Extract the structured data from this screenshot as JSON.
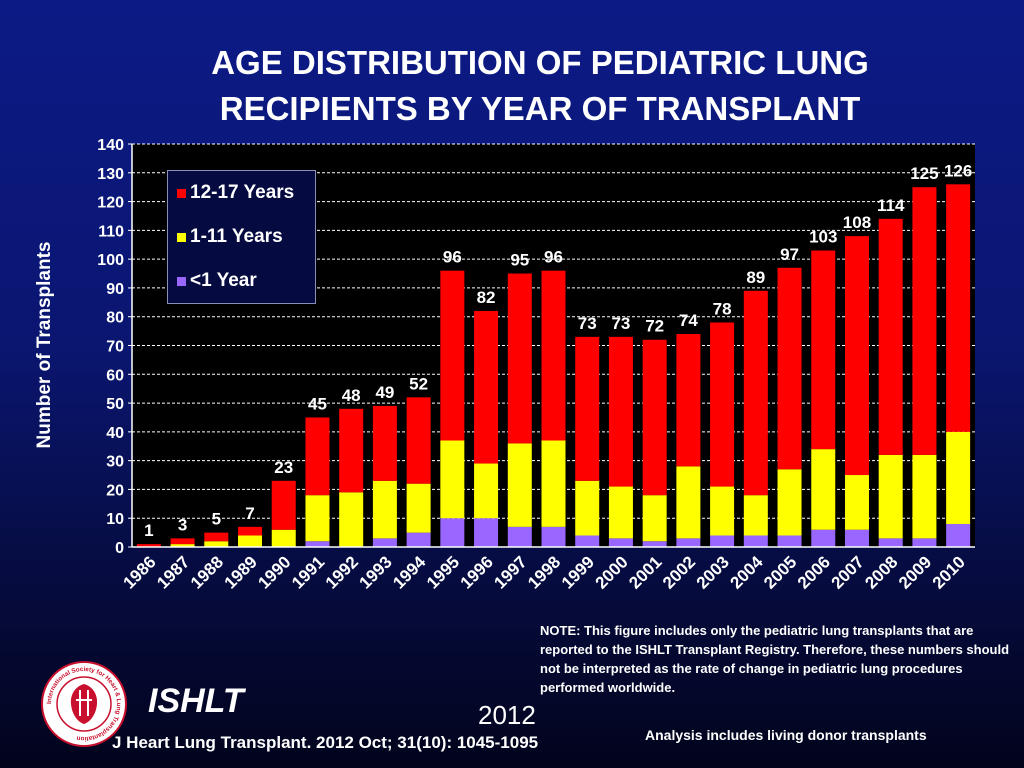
{
  "slide": {
    "title_line1": "AGE DISTRIBUTION OF PEDIATRIC LUNG",
    "title_line2": "RECIPIENTS BY YEAR OF TRANSPLANT",
    "note": "NOTE: This figure includes only the pediatric lung transplants that are reported to the ISHLT Transplant Registry. Therefore, these numbers should not be interpreted as the rate of change in pediatric lung procedures performed worldwide.",
    "brand": "ISHLT",
    "year": "2012",
    "citation": "J Heart Lung Transplant.  2012 Oct; 31(10): 1045-1095",
    "analysis_note": "Analysis includes living donor transplants",
    "logo_text": "International Society for Heart & Lung Transplantation"
  },
  "chart_data": {
    "type": "bar",
    "stacked": true,
    "title": "AGE DISTRIBUTION OF PEDIATRIC LUNG RECIPIENTS BY YEAR OF TRANSPLANT",
    "xlabel": "",
    "ylabel": "Number of Transplants",
    "ylim": [
      0,
      140
    ],
    "yticks": [
      0,
      10,
      20,
      30,
      40,
      50,
      60,
      70,
      80,
      90,
      100,
      110,
      120,
      130,
      140
    ],
    "grid": true,
    "legend_position": "top-left",
    "categories": [
      "1986",
      "1987",
      "1988",
      "1989",
      "1990",
      "1991",
      "1992",
      "1993",
      "1994",
      "1995",
      "1996",
      "1997",
      "1998",
      "1999",
      "2000",
      "2001",
      "2002",
      "2003",
      "2004",
      "2005",
      "2006",
      "2007",
      "2008",
      "2009",
      "2010"
    ],
    "series": [
      {
        "name": "<1 Year",
        "color": "#9966ff",
        "values": [
          0,
          0,
          0,
          0,
          0,
          2,
          0,
          3,
          5,
          10,
          10,
          7,
          7,
          4,
          3,
          2,
          3,
          4,
          4,
          4,
          6,
          6,
          3,
          3,
          8
        ]
      },
      {
        "name": "1-11 Years",
        "color": "#ffff00",
        "values": [
          0,
          1,
          2,
          4,
          6,
          16,
          19,
          20,
          17,
          27,
          19,
          29,
          30,
          19,
          18,
          16,
          25,
          17,
          14,
          23,
          28,
          19,
          29,
          29,
          32
        ]
      },
      {
        "name": "12-17 Years",
        "color": "#ff0000",
        "values": [
          1,
          2,
          3,
          3,
          17,
          27,
          29,
          26,
          30,
          59,
          53,
          59,
          59,
          50,
          52,
          54,
          46,
          57,
          71,
          70,
          69,
          83,
          82,
          93,
          86
        ]
      }
    ],
    "totals": [
      1,
      3,
      5,
      7,
      23,
      45,
      48,
      49,
      52,
      96,
      82,
      95,
      96,
      73,
      73,
      72,
      74,
      78,
      89,
      97,
      103,
      108,
      114,
      125,
      126
    ],
    "legend_order": [
      "12-17 Years",
      "1-11 Years",
      "<1 Year"
    ]
  }
}
